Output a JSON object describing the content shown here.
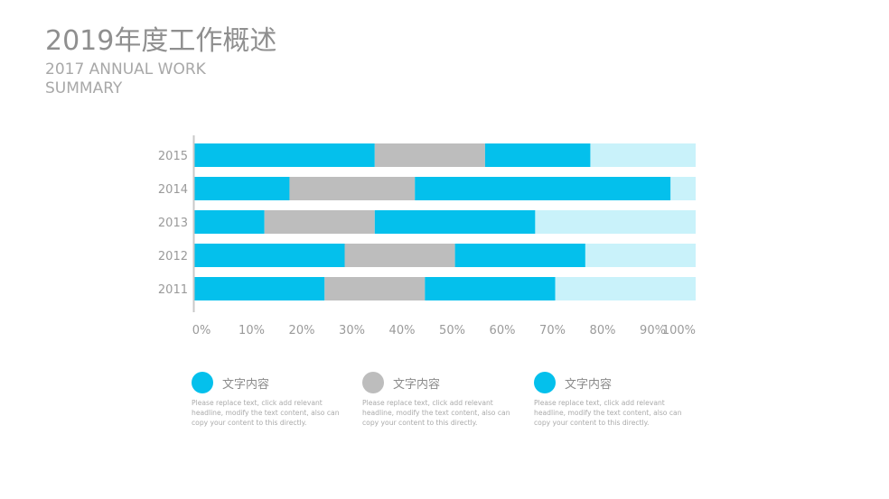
{
  "header": {
    "title": "2019年度工作概述",
    "subtitle": "2017 ANNUAL WORK SUMMARY"
  },
  "colors": {
    "blue": "#04c0ec",
    "gray": "#bdbdbd",
    "light": "#c9f2fa",
    "axis": "#c8c8c8",
    "tick_text": "#9a9a9a"
  },
  "chart_data": {
    "type": "bar",
    "orientation": "horizontal",
    "stacked": true,
    "categories": [
      "2015",
      "2014",
      "2013",
      "2012",
      "2011"
    ],
    "series": [
      {
        "name": "",
        "color": "#04c0ec",
        "values": [
          36,
          19,
          14,
          30,
          26
        ]
      },
      {
        "name": "",
        "color": "#bdbdbd",
        "values": [
          22,
          25,
          22,
          22,
          20
        ]
      },
      {
        "name": "",
        "color": "#04c0ec",
        "values": [
          21,
          51,
          32,
          26,
          26
        ]
      },
      {
        "name": "",
        "color": "#c9f2fa",
        "values": [
          21,
          5,
          32,
          22,
          28
        ]
      }
    ],
    "xticks": [
      "0%",
      "10%",
      "20%",
      "30%",
      "40%",
      "50%",
      "60%",
      "70%",
      "80%",
      "90%",
      "100%"
    ],
    "xlim": [
      0,
      100
    ],
    "grid": false,
    "title": "",
    "xlabel": "",
    "ylabel": ""
  },
  "legend": [
    {
      "title": "文字内容",
      "color": "#04c0ec",
      "desc": "Please replace text, click add relevant headline, modify the text content, also can copy your content to this directly."
    },
    {
      "title": "文字内容",
      "color": "#bdbdbd",
      "desc": "Please replace text, click add relevant headline, modify the text content, also can copy your content to this directly."
    },
    {
      "title": "文字内容",
      "color": "#04c0ec",
      "desc": "Please replace text, click add relevant headline, modify the text content, also can copy your content to this directly."
    }
  ]
}
